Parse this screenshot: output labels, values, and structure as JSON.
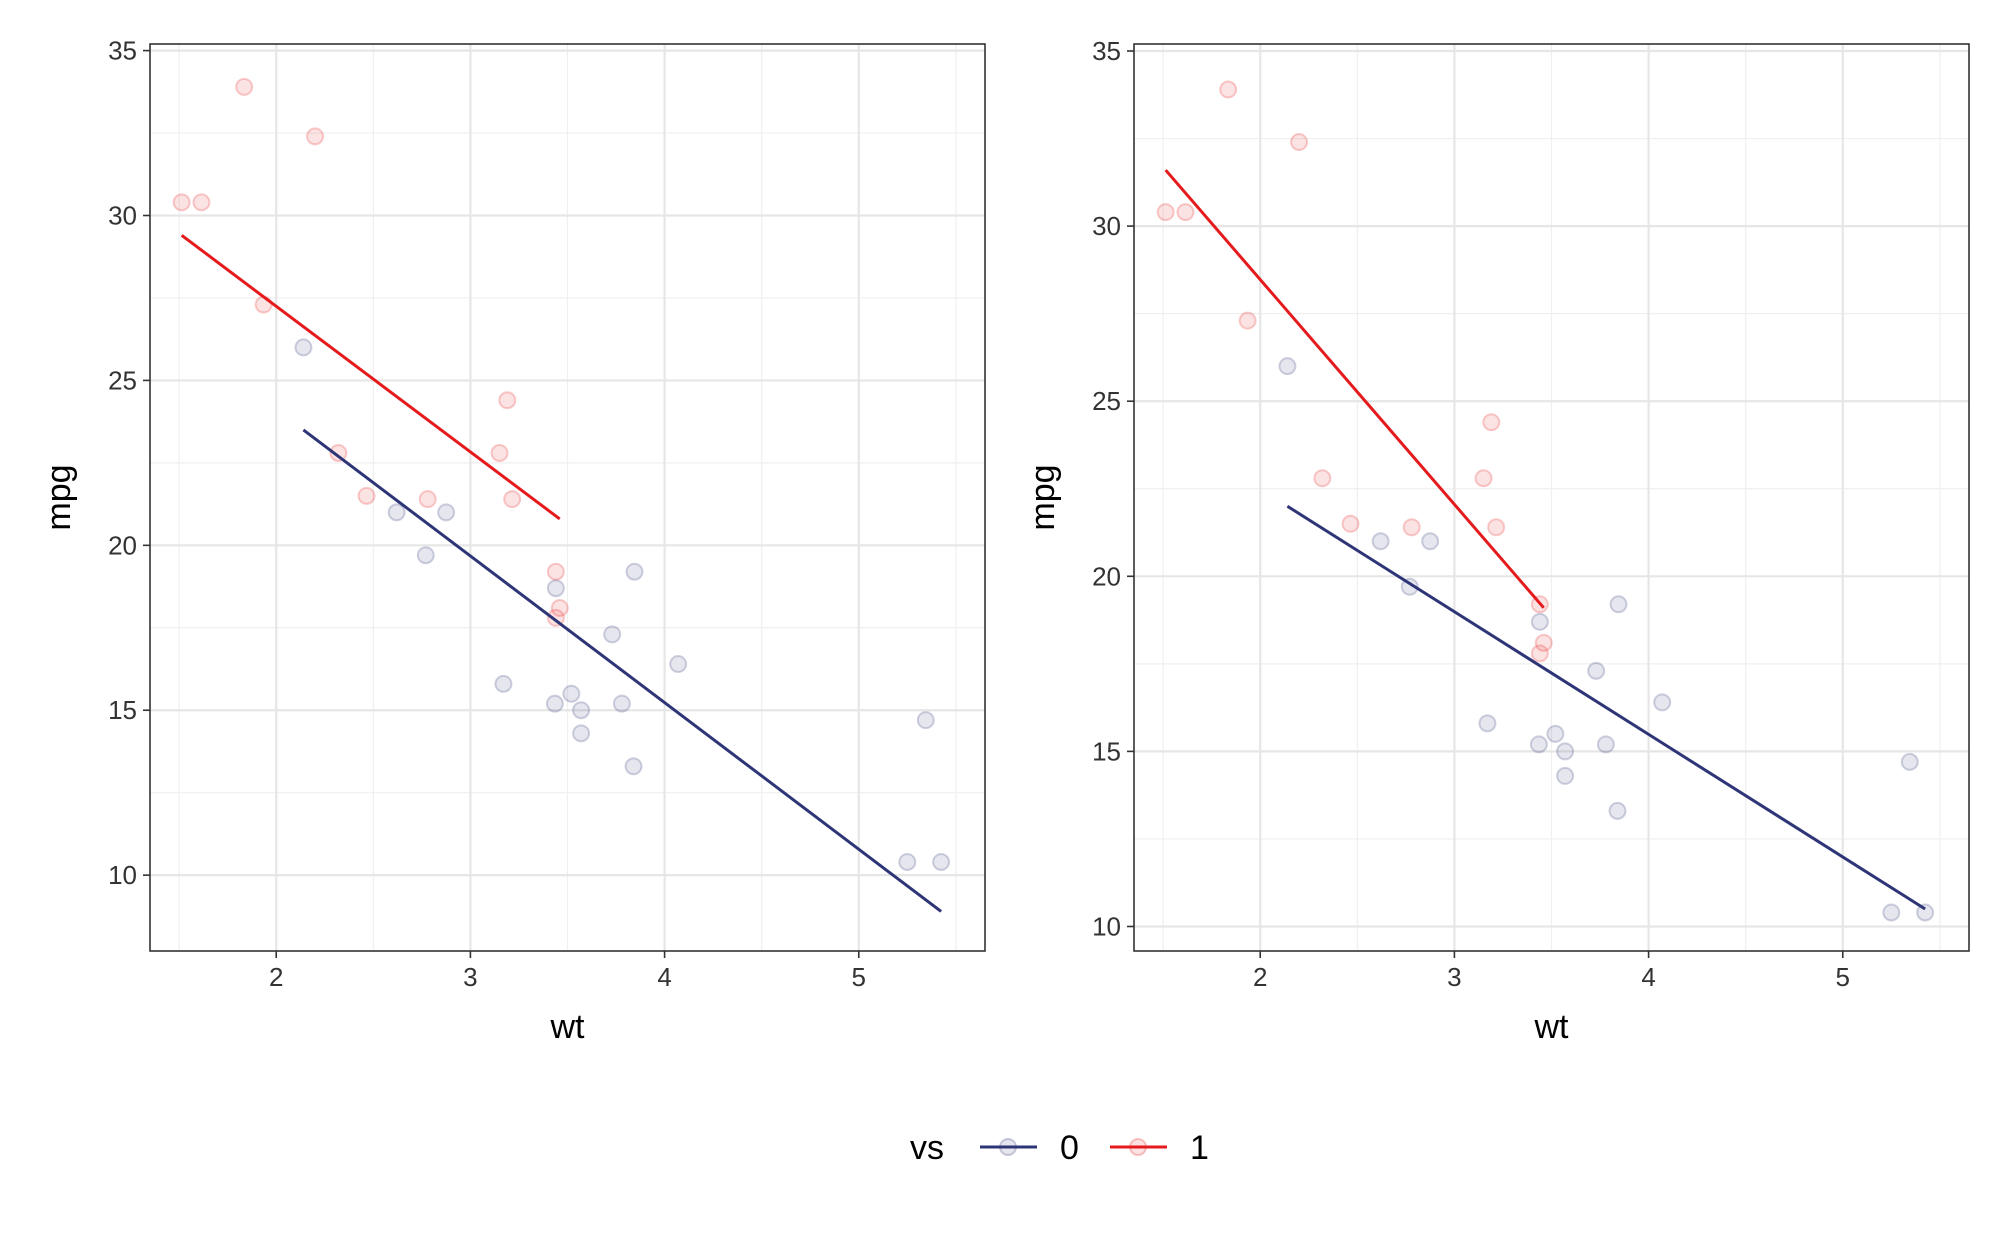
{
  "colors": {
    "vs_0": "#2e3577",
    "vs_1": "#e41a1c"
  },
  "legend": {
    "title": "vs",
    "entries": [
      {
        "label": "0",
        "color": "#2e3577"
      },
      {
        "label": "1",
        "color": "#e41a1c"
      }
    ]
  },
  "chart_data": [
    {
      "type": "scatter",
      "xlabel": "wt",
      "ylabel": "mpg",
      "xlim": [
        1.35,
        5.65
      ],
      "ylim": [
        7.7,
        35.2
      ],
      "x_ticks": [
        2,
        3,
        4,
        5
      ],
      "y_ticks": [
        10,
        15,
        20,
        25,
        30,
        35
      ],
      "grid": true,
      "series": [
        {
          "name": "0",
          "color": "#2e3577",
          "points": [
            [
              2.62,
              21.0
            ],
            [
              2.875,
              21.0
            ],
            [
              3.44,
              18.7
            ],
            [
              3.57,
              14.3
            ],
            [
              4.07,
              16.4
            ],
            [
              3.73,
              17.3
            ],
            [
              3.78,
              15.2
            ],
            [
              5.25,
              10.4
            ],
            [
              5.424,
              10.4
            ],
            [
              5.345,
              14.7
            ],
            [
              3.52,
              15.5
            ],
            [
              3.435,
              15.2
            ],
            [
              3.84,
              13.3
            ],
            [
              3.845,
              19.2
            ],
            [
              2.14,
              26.0
            ],
            [
              3.17,
              15.8
            ],
            [
              2.77,
              19.7
            ],
            [
              3.57,
              15.0
            ]
          ],
          "fit": [
            [
              2.14,
              23.5
            ],
            [
              5.424,
              8.9
            ]
          ]
        },
        {
          "name": "1",
          "color": "#e41a1c",
          "points": [
            [
              2.32,
              22.8
            ],
            [
              3.215,
              21.4
            ],
            [
              3.46,
              18.1
            ],
            [
              3.19,
              24.4
            ],
            [
              3.15,
              22.8
            ],
            [
              3.44,
              19.2
            ],
            [
              3.44,
              17.8
            ],
            [
              2.2,
              32.4
            ],
            [
              1.615,
              30.4
            ],
            [
              1.835,
              33.9
            ],
            [
              2.465,
              21.5
            ],
            [
              1.935,
              27.3
            ],
            [
              1.513,
              30.4
            ],
            [
              2.78,
              21.4
            ]
          ],
          "fit": [
            [
              1.513,
              29.4
            ],
            [
              3.46,
              20.8
            ]
          ]
        }
      ]
    },
    {
      "type": "scatter",
      "xlabel": "wt",
      "ylabel": "mpg",
      "xlim": [
        1.35,
        5.65
      ],
      "ylim": [
        9.3,
        35.2
      ],
      "x_ticks": [
        2,
        3,
        4,
        5
      ],
      "y_ticks": [
        10,
        15,
        20,
        25,
        30,
        35
      ],
      "grid": true,
      "series": [
        {
          "name": "0",
          "color": "#2e3577",
          "points": [
            [
              2.62,
              21.0
            ],
            [
              2.875,
              21.0
            ],
            [
              3.44,
              18.7
            ],
            [
              3.57,
              14.3
            ],
            [
              4.07,
              16.4
            ],
            [
              3.73,
              17.3
            ],
            [
              3.78,
              15.2
            ],
            [
              5.25,
              10.4
            ],
            [
              5.424,
              10.4
            ],
            [
              5.345,
              14.7
            ],
            [
              3.52,
              15.5
            ],
            [
              3.435,
              15.2
            ],
            [
              3.84,
              13.3
            ],
            [
              3.845,
              19.2
            ],
            [
              2.14,
              26.0
            ],
            [
              3.17,
              15.8
            ],
            [
              2.77,
              19.7
            ],
            [
              3.57,
              15.0
            ]
          ],
          "fit": [
            [
              2.14,
              22.0
            ],
            [
              5.424,
              10.5
            ]
          ]
        },
        {
          "name": "1",
          "color": "#e41a1c",
          "points": [
            [
              2.32,
              22.8
            ],
            [
              3.215,
              21.4
            ],
            [
              3.46,
              18.1
            ],
            [
              3.19,
              24.4
            ],
            [
              3.15,
              22.8
            ],
            [
              3.44,
              19.2
            ],
            [
              3.44,
              17.8
            ],
            [
              2.2,
              32.4
            ],
            [
              1.615,
              30.4
            ],
            [
              1.835,
              33.9
            ],
            [
              2.465,
              21.5
            ],
            [
              1.935,
              27.3
            ],
            [
              1.513,
              30.4
            ],
            [
              2.78,
              21.4
            ]
          ],
          "fit": [
            [
              1.513,
              31.6
            ],
            [
              3.46,
              19.1
            ]
          ]
        }
      ]
    }
  ]
}
